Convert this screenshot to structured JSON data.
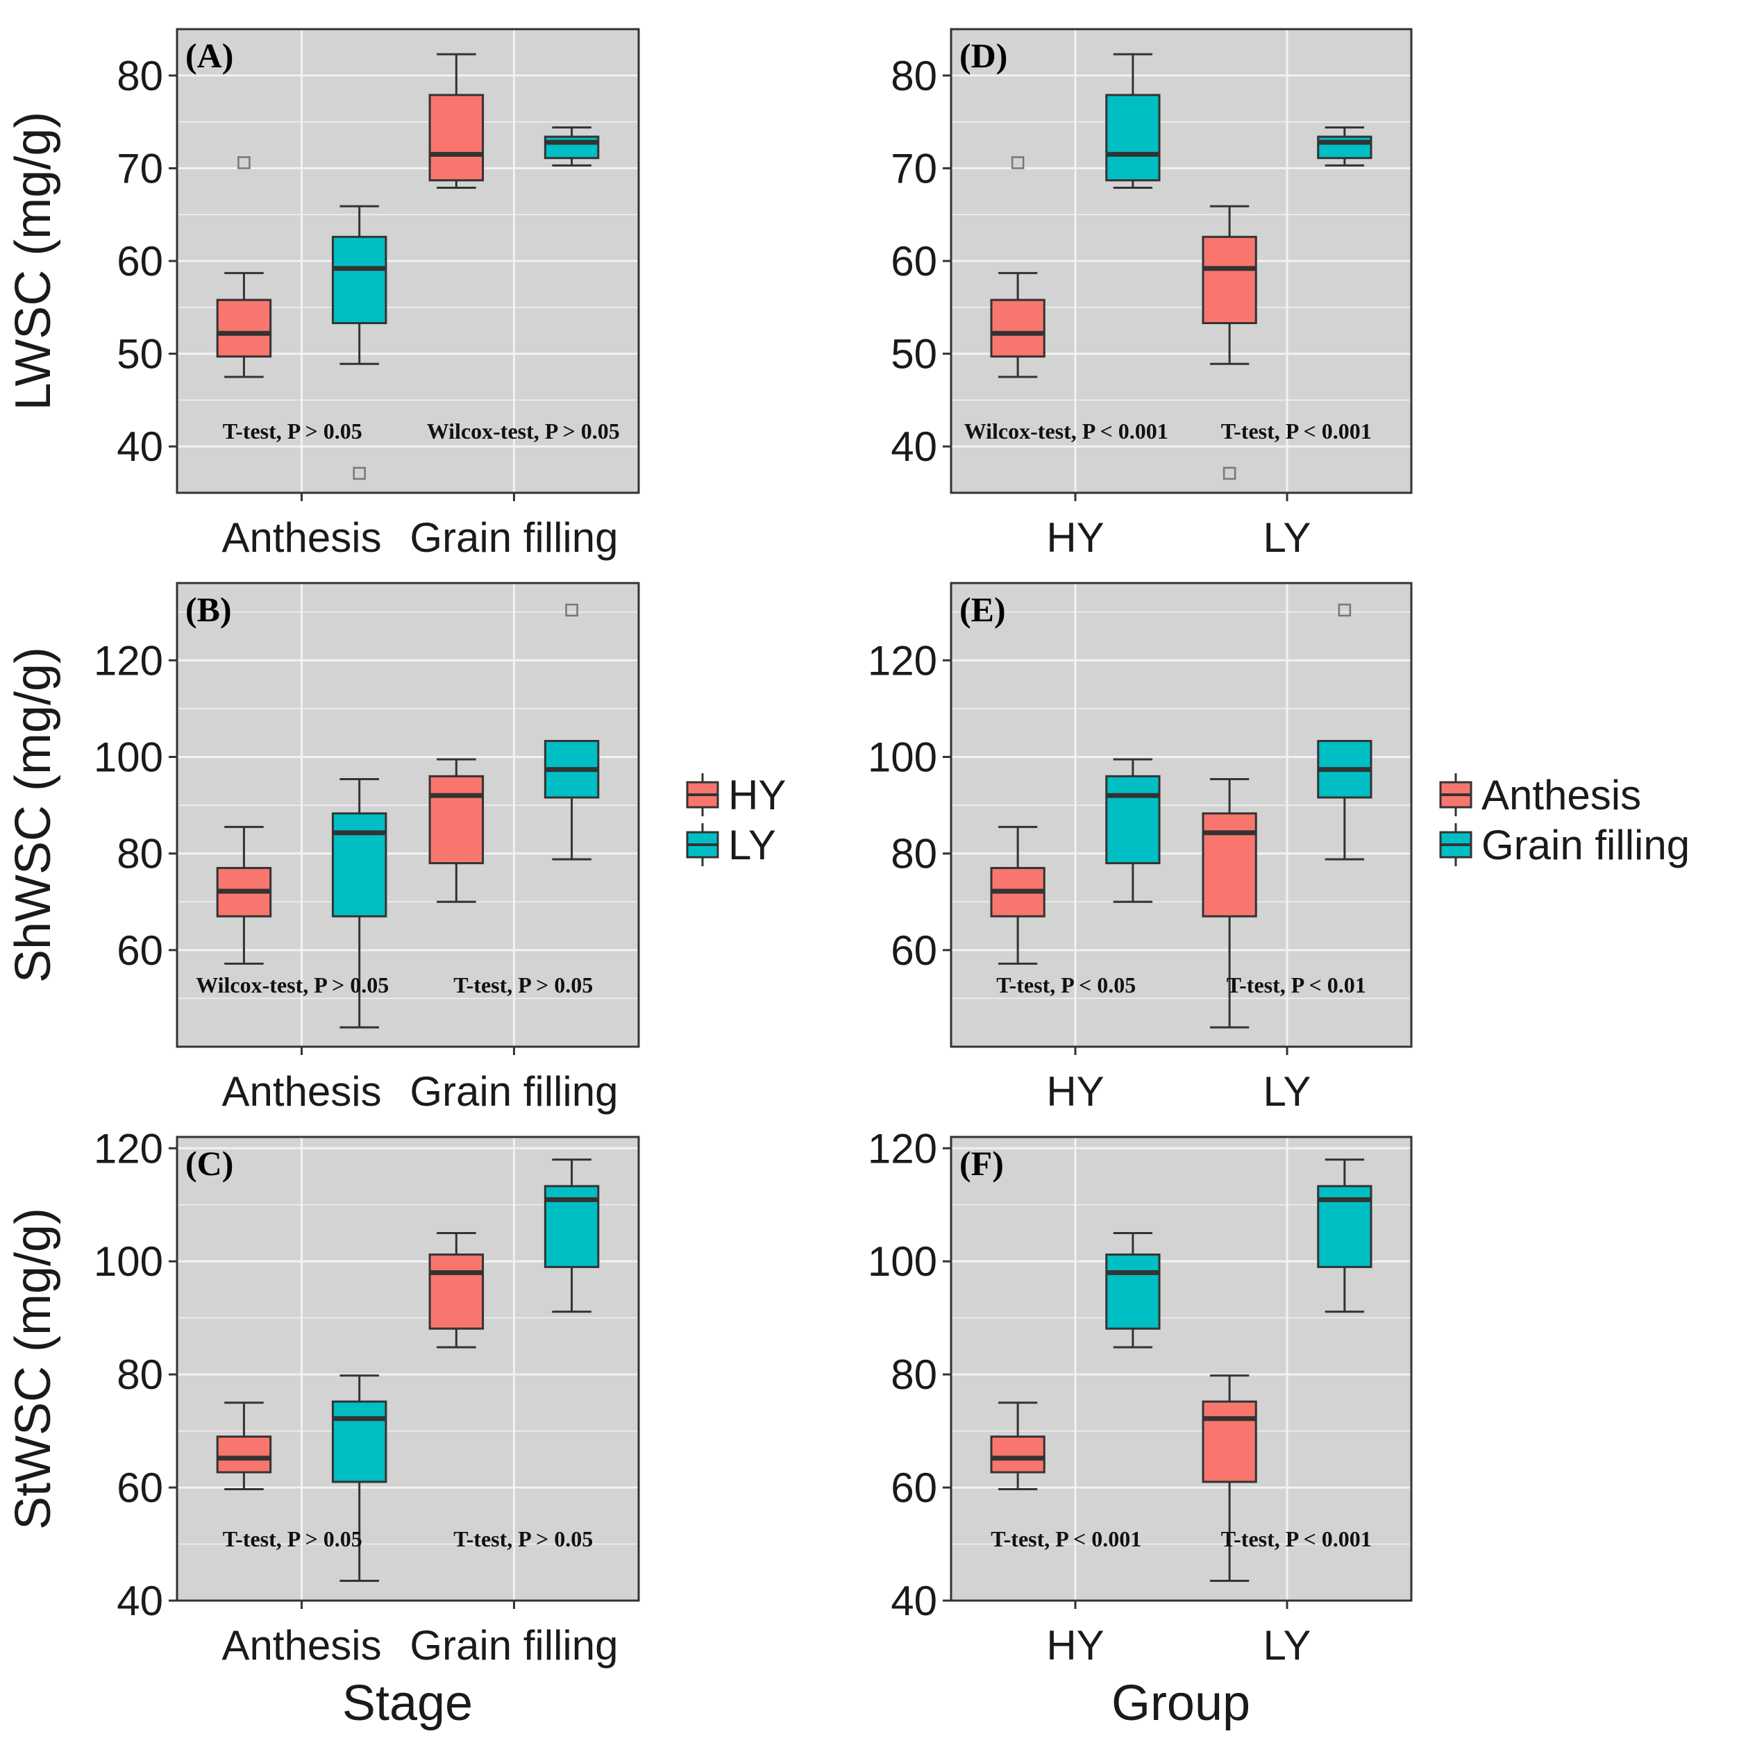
{
  "colors": {
    "HY": "#F8766D",
    "LY": "#00BFC4",
    "Anthesis": "#F8766D",
    "Grain filling": "#00BFC4",
    "panel_bg": "#D3D3D3",
    "grid": "#F2F2F2"
  },
  "legends": [
    {
      "position": "right",
      "items": [
        {
          "label": "HY",
          "color": "#F8766D"
        },
        {
          "label": "LY",
          "color": "#00BFC4"
        }
      ]
    },
    {
      "position": "right",
      "items": [
        {
          "label": "Anthesis",
          "color": "#F8766D"
        },
        {
          "label": "Grain filling",
          "color": "#00BFC4"
        }
      ]
    }
  ],
  "x_titles": {
    "left": "Stage",
    "right": "Group"
  },
  "chart_data": [
    {
      "panel": "(A)",
      "type": "boxplot",
      "ylabel": "LWSC (mg/g)",
      "ylim": [
        35,
        85
      ],
      "yticks": [
        40,
        50,
        60,
        70,
        80
      ],
      "categories": [
        "Anthesis",
        "Grain filling"
      ],
      "series": [
        {
          "name": "HY",
          "legend": 0,
          "boxes": [
            {
              "whislo": 47.5,
              "q1": 49.7,
              "med": 52.2,
              "q3": 55.8,
              "whishi": 58.7,
              "fliers": [
                70.6
              ]
            },
            {
              "whislo": 67.9,
              "q1": 68.7,
              "med": 71.5,
              "q3": 77.9,
              "whishi": 82.3,
              "fliers": []
            }
          ]
        },
        {
          "name": "LY",
          "legend": 0,
          "boxes": [
            {
              "whislo": 48.9,
              "q1": 53.3,
              "med": 59.2,
              "q3": 62.6,
              "whishi": 65.9,
              "fliers": [
                37.1
              ]
            },
            {
              "whislo": 70.3,
              "q1": 71.1,
              "med": 72.8,
              "q3": 73.4,
              "whishi": 74.4,
              "fliers": []
            }
          ]
        }
      ],
      "annotations": [
        "T-test, P > 0.05",
        "Wilcox-test, P > 0.05"
      ]
    },
    {
      "panel": "(B)",
      "type": "boxplot",
      "ylabel": "ShWSC (mg/g)",
      "ylim": [
        40,
        136
      ],
      "yticks": [
        60,
        80,
        100,
        120
      ],
      "categories": [
        "Anthesis",
        "Grain filling"
      ],
      "series": [
        {
          "name": "HY",
          "legend": 0,
          "boxes": [
            {
              "whislo": 57.2,
              "q1": 67.0,
              "med": 72.2,
              "q3": 77.0,
              "whishi": 85.5,
              "fliers": []
            },
            {
              "whislo": 70.0,
              "q1": 78.0,
              "med": 92.0,
              "q3": 96.0,
              "whishi": 99.5,
              "fliers": []
            }
          ]
        },
        {
          "name": "LY",
          "legend": 0,
          "boxes": [
            {
              "whislo": 44.0,
              "q1": 67.0,
              "med": 84.3,
              "q3": 88.3,
              "whishi": 95.4,
              "fliers": []
            },
            {
              "whislo": 78.8,
              "q1": 91.6,
              "med": 97.4,
              "q3": 103.3,
              "whishi": 103.3,
              "fliers": [
                130.4
              ]
            }
          ]
        }
      ],
      "annotations": [
        "Wilcox-test, P > 0.05",
        "T-test, P > 0.05"
      ]
    },
    {
      "panel": "(C)",
      "type": "boxplot",
      "ylabel": "StWSC (mg/g)",
      "ylim": [
        40,
        122
      ],
      "yticks": [
        40,
        60,
        80,
        100,
        120
      ],
      "categories": [
        "Anthesis",
        "Grain filling"
      ],
      "series": [
        {
          "name": "HY",
          "legend": 0,
          "boxes": [
            {
              "whislo": 59.7,
              "q1": 62.7,
              "med": 65.2,
              "q3": 69.0,
              "whishi": 75.0,
              "fliers": []
            },
            {
              "whislo": 84.8,
              "q1": 88.1,
              "med": 98.0,
              "q3": 101.2,
              "whishi": 105.0,
              "fliers": []
            }
          ]
        },
        {
          "name": "LY",
          "legend": 0,
          "boxes": [
            {
              "whislo": 43.5,
              "q1": 61.0,
              "med": 72.2,
              "q3": 75.2,
              "whishi": 79.8,
              "fliers": []
            },
            {
              "whislo": 91.1,
              "q1": 99.0,
              "med": 110.9,
              "q3": 113.3,
              "whishi": 118.0,
              "fliers": []
            }
          ]
        }
      ],
      "annotations": [
        "T-test, P > 0.05",
        "T-test, P > 0.05"
      ]
    },
    {
      "panel": "(D)",
      "type": "boxplot",
      "ylabel": "",
      "ylim": [
        35,
        85
      ],
      "yticks": [
        40,
        50,
        60,
        70,
        80
      ],
      "categories": [
        "HY",
        "LY"
      ],
      "series": [
        {
          "name": "Anthesis",
          "legend": 1,
          "boxes": [
            {
              "whislo": 47.5,
              "q1": 49.7,
              "med": 52.2,
              "q3": 55.8,
              "whishi": 58.7,
              "fliers": [
                70.6
              ]
            },
            {
              "whislo": 48.9,
              "q1": 53.3,
              "med": 59.2,
              "q3": 62.6,
              "whishi": 65.9,
              "fliers": [
                37.1
              ]
            }
          ]
        },
        {
          "name": "Grain filling",
          "legend": 1,
          "boxes": [
            {
              "whislo": 67.9,
              "q1": 68.7,
              "med": 71.5,
              "q3": 77.9,
              "whishi": 82.3,
              "fliers": []
            },
            {
              "whislo": 70.3,
              "q1": 71.1,
              "med": 72.8,
              "q3": 73.4,
              "whishi": 74.4,
              "fliers": []
            }
          ]
        }
      ],
      "annotations": [
        "Wilcox-test, P < 0.001",
        "T-test, P < 0.001"
      ]
    },
    {
      "panel": "(E)",
      "type": "boxplot",
      "ylabel": "",
      "ylim": [
        40,
        136
      ],
      "yticks": [
        60,
        80,
        100,
        120
      ],
      "categories": [
        "HY",
        "LY"
      ],
      "series": [
        {
          "name": "Anthesis",
          "legend": 1,
          "boxes": [
            {
              "whislo": 57.2,
              "q1": 67.0,
              "med": 72.2,
              "q3": 77.0,
              "whishi": 85.5,
              "fliers": []
            },
            {
              "whislo": 44.0,
              "q1": 67.0,
              "med": 84.3,
              "q3": 88.3,
              "whishi": 95.4,
              "fliers": []
            }
          ]
        },
        {
          "name": "Grain filling",
          "legend": 1,
          "boxes": [
            {
              "whislo": 70.0,
              "q1": 78.0,
              "med": 92.0,
              "q3": 96.0,
              "whishi": 99.5,
              "fliers": []
            },
            {
              "whislo": 78.8,
              "q1": 91.6,
              "med": 97.4,
              "q3": 103.3,
              "whishi": 103.3,
              "fliers": [
                130.4
              ]
            }
          ]
        }
      ],
      "annotations": [
        "T-test, P < 0.05",
        "T-test, P < 0.01"
      ]
    },
    {
      "panel": "(F)",
      "type": "boxplot",
      "ylabel": "",
      "ylim": [
        40,
        122
      ],
      "yticks": [
        40,
        60,
        80,
        100,
        120
      ],
      "categories": [
        "HY",
        "LY"
      ],
      "series": [
        {
          "name": "Anthesis",
          "legend": 1,
          "boxes": [
            {
              "whislo": 59.7,
              "q1": 62.7,
              "med": 65.2,
              "q3": 69.0,
              "whishi": 75.0,
              "fliers": []
            },
            {
              "whislo": 43.5,
              "q1": 61.0,
              "med": 72.2,
              "q3": 75.2,
              "whishi": 79.8,
              "fliers": []
            }
          ]
        },
        {
          "name": "Grain filling",
          "legend": 1,
          "boxes": [
            {
              "whislo": 84.8,
              "q1": 88.1,
              "med": 98.0,
              "q3": 101.2,
              "whishi": 105.0,
              "fliers": []
            },
            {
              "whislo": 91.1,
              "q1": 99.0,
              "med": 110.9,
              "q3": 113.3,
              "whishi": 118.0,
              "fliers": []
            }
          ]
        }
      ],
      "annotations": [
        "T-test, P < 0.001",
        "T-test, P < 0.001"
      ]
    }
  ]
}
